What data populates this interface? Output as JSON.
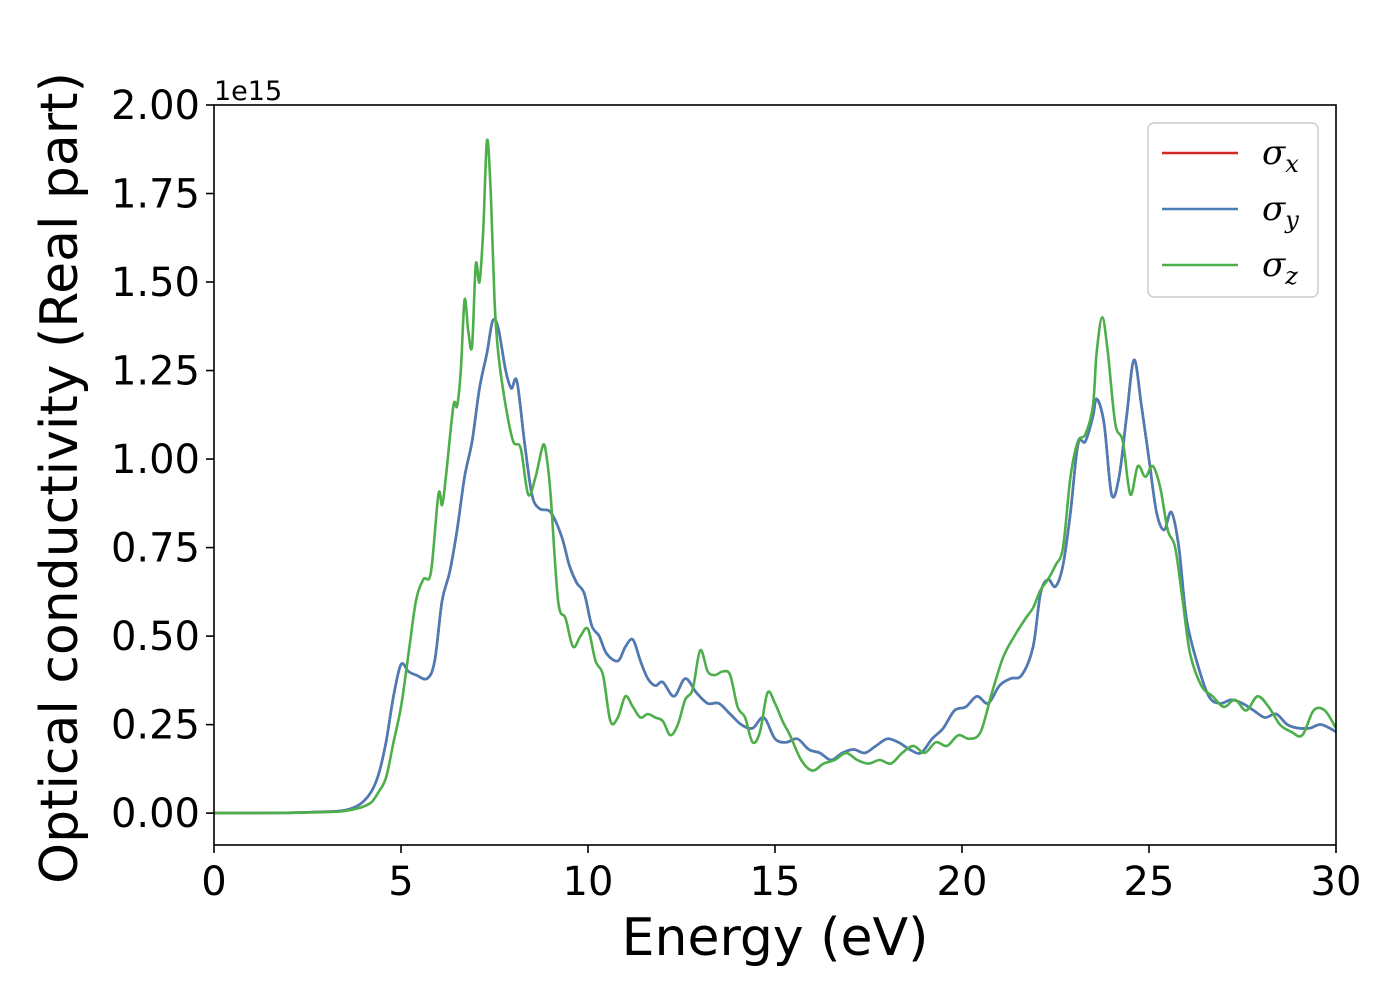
{
  "chart_data": {
    "type": "line",
    "xlabel": "Energy (eV)",
    "ylabel": "Optical conductivity (Real part)",
    "y_offset_label": "1e15",
    "xlim": [
      0,
      30
    ],
    "ylim": [
      -0.09,
      2.0
    ],
    "x_ticks": [
      0,
      5,
      10,
      15,
      20,
      25,
      30
    ],
    "y_ticks": [
      0.0,
      0.25,
      0.5,
      0.75,
      1.0,
      1.25,
      1.5,
      1.75,
      2.0
    ],
    "x_tick_labels": [
      "0",
      "5",
      "10",
      "15",
      "20",
      "25",
      "30"
    ],
    "y_tick_labels": [
      "0.00",
      "0.25",
      "0.50",
      "0.75",
      "1.00",
      "1.25",
      "1.50",
      "1.75",
      "2.00"
    ],
    "grid": false,
    "legend_position": "top-right",
    "series": [
      {
        "name": "σx",
        "symbol": "σ",
        "subscript": "x",
        "color": "#d62728",
        "x": [
          0,
          2,
          3,
          3.5,
          3.9,
          4.2,
          4.4,
          4.6,
          4.8,
          5.0,
          5.2,
          5.4,
          5.7,
          5.9,
          6.1,
          6.3,
          6.5,
          6.7,
          6.9,
          7.1,
          7.3,
          7.45,
          7.6,
          7.8,
          7.95,
          8.1,
          8.3,
          8.5,
          8.7,
          9.0,
          9.3,
          9.5,
          9.7,
          9.9,
          10.1,
          10.3,
          10.5,
          10.8,
          11.0,
          11.2,
          11.4,
          11.6,
          11.8,
          12.0,
          12.3,
          12.6,
          12.9,
          13.2,
          13.5,
          13.8,
          14.1,
          14.4,
          14.7,
          15.0,
          15.3,
          15.6,
          15.9,
          16.2,
          16.5,
          16.8,
          17.1,
          17.4,
          17.7,
          18.0,
          18.3,
          18.6,
          18.9,
          19.2,
          19.5,
          19.8,
          20.1,
          20.4,
          20.7,
          21.0,
          21.3,
          21.6,
          21.9,
          22.1,
          22.3,
          22.5,
          22.7,
          22.9,
          23.1,
          23.3,
          23.5,
          23.6,
          23.8,
          24.0,
          24.2,
          24.4,
          24.6,
          24.8,
          25.0,
          25.2,
          25.4,
          25.6,
          25.8,
          26.0,
          26.3,
          26.6,
          26.9,
          27.2,
          27.5,
          27.8,
          28.1,
          28.4,
          28.7,
          29.0,
          29.3,
          29.6,
          30.0
        ],
        "y": [
          0.0,
          0.001,
          0.004,
          0.008,
          0.025,
          0.06,
          0.11,
          0.2,
          0.33,
          0.42,
          0.4,
          0.39,
          0.38,
          0.43,
          0.6,
          0.68,
          0.8,
          0.95,
          1.05,
          1.2,
          1.3,
          1.39,
          1.37,
          1.25,
          1.2,
          1.22,
          1.05,
          0.9,
          0.86,
          0.85,
          0.78,
          0.7,
          0.65,
          0.62,
          0.53,
          0.5,
          0.45,
          0.43,
          0.47,
          0.49,
          0.43,
          0.38,
          0.36,
          0.37,
          0.33,
          0.38,
          0.34,
          0.31,
          0.31,
          0.28,
          0.25,
          0.24,
          0.27,
          0.21,
          0.2,
          0.21,
          0.18,
          0.17,
          0.15,
          0.17,
          0.18,
          0.17,
          0.19,
          0.21,
          0.2,
          0.18,
          0.17,
          0.21,
          0.24,
          0.29,
          0.3,
          0.33,
          0.31,
          0.36,
          0.38,
          0.39,
          0.47,
          0.62,
          0.66,
          0.64,
          0.7,
          0.85,
          1.04,
          1.05,
          1.12,
          1.17,
          1.1,
          0.9,
          0.95,
          1.12,
          1.28,
          1.15,
          1.0,
          0.85,
          0.8,
          0.85,
          0.75,
          0.55,
          0.42,
          0.33,
          0.31,
          0.32,
          0.31,
          0.29,
          0.27,
          0.28,
          0.25,
          0.24,
          0.24,
          0.25,
          0.23
        ]
      },
      {
        "name": "σy",
        "symbol": "σ",
        "subscript": "y",
        "color": "#4a7db8",
        "x": [
          0,
          2,
          3,
          3.5,
          3.9,
          4.2,
          4.4,
          4.6,
          4.8,
          5.0,
          5.2,
          5.4,
          5.7,
          5.9,
          6.1,
          6.3,
          6.5,
          6.7,
          6.9,
          7.1,
          7.3,
          7.45,
          7.6,
          7.8,
          7.95,
          8.1,
          8.3,
          8.5,
          8.7,
          9.0,
          9.3,
          9.5,
          9.7,
          9.9,
          10.1,
          10.3,
          10.5,
          10.8,
          11.0,
          11.2,
          11.4,
          11.6,
          11.8,
          12.0,
          12.3,
          12.6,
          12.9,
          13.2,
          13.5,
          13.8,
          14.1,
          14.4,
          14.7,
          15.0,
          15.3,
          15.6,
          15.9,
          16.2,
          16.5,
          16.8,
          17.1,
          17.4,
          17.7,
          18.0,
          18.3,
          18.6,
          18.9,
          19.2,
          19.5,
          19.8,
          20.1,
          20.4,
          20.7,
          21.0,
          21.3,
          21.6,
          21.9,
          22.1,
          22.3,
          22.5,
          22.7,
          22.9,
          23.1,
          23.3,
          23.5,
          23.6,
          23.8,
          24.0,
          24.2,
          24.4,
          24.6,
          24.8,
          25.0,
          25.2,
          25.4,
          25.6,
          25.8,
          26.0,
          26.3,
          26.6,
          26.9,
          27.2,
          27.5,
          27.8,
          28.1,
          28.4,
          28.7,
          29.0,
          29.3,
          29.6,
          30.0
        ],
        "y": [
          0.0,
          0.001,
          0.004,
          0.008,
          0.025,
          0.06,
          0.11,
          0.2,
          0.33,
          0.42,
          0.4,
          0.39,
          0.38,
          0.43,
          0.6,
          0.68,
          0.8,
          0.95,
          1.05,
          1.2,
          1.3,
          1.39,
          1.37,
          1.25,
          1.2,
          1.22,
          1.05,
          0.9,
          0.86,
          0.85,
          0.78,
          0.7,
          0.65,
          0.62,
          0.53,
          0.5,
          0.45,
          0.43,
          0.47,
          0.49,
          0.43,
          0.38,
          0.36,
          0.37,
          0.33,
          0.38,
          0.34,
          0.31,
          0.31,
          0.28,
          0.25,
          0.24,
          0.27,
          0.21,
          0.2,
          0.21,
          0.18,
          0.17,
          0.15,
          0.17,
          0.18,
          0.17,
          0.19,
          0.21,
          0.2,
          0.18,
          0.17,
          0.21,
          0.24,
          0.29,
          0.3,
          0.33,
          0.31,
          0.36,
          0.38,
          0.39,
          0.47,
          0.62,
          0.66,
          0.64,
          0.7,
          0.85,
          1.04,
          1.05,
          1.12,
          1.17,
          1.1,
          0.9,
          0.95,
          1.12,
          1.28,
          1.15,
          1.0,
          0.85,
          0.8,
          0.85,
          0.75,
          0.55,
          0.42,
          0.33,
          0.31,
          0.32,
          0.31,
          0.29,
          0.27,
          0.28,
          0.25,
          0.24,
          0.24,
          0.25,
          0.23
        ]
      },
      {
        "name": "σz",
        "symbol": "σ",
        "subscript": "z",
        "color": "#4daf4a",
        "x": [
          0,
          2,
          3,
          3.5,
          3.9,
          4.2,
          4.4,
          4.6,
          4.8,
          5.0,
          5.2,
          5.4,
          5.6,
          5.8,
          6.0,
          6.1,
          6.2,
          6.4,
          6.5,
          6.6,
          6.7,
          6.8,
          6.9,
          7.0,
          7.1,
          7.2,
          7.3,
          7.4,
          7.5,
          7.6,
          7.8,
          8.0,
          8.2,
          8.4,
          8.6,
          8.8,
          8.9,
          9.0,
          9.2,
          9.4,
          9.6,
          9.8,
          10.0,
          10.2,
          10.4,
          10.6,
          10.8,
          11.0,
          11.2,
          11.4,
          11.6,
          11.8,
          12.0,
          12.2,
          12.4,
          12.6,
          12.8,
          13.0,
          13.2,
          13.4,
          13.6,
          13.8,
          14.0,
          14.2,
          14.4,
          14.6,
          14.8,
          15.0,
          15.2,
          15.4,
          15.7,
          16.0,
          16.3,
          16.6,
          16.9,
          17.2,
          17.5,
          17.8,
          18.1,
          18.4,
          18.7,
          19.0,
          19.3,
          19.6,
          19.9,
          20.2,
          20.5,
          20.8,
          21.1,
          21.4,
          21.7,
          21.9,
          22.1,
          22.3,
          22.5,
          22.7,
          22.9,
          23.1,
          23.3,
          23.5,
          23.6,
          23.75,
          23.9,
          24.1,
          24.3,
          24.5,
          24.7,
          24.9,
          25.1,
          25.3,
          25.5,
          25.7,
          25.9,
          26.1,
          26.4,
          26.7,
          27.0,
          27.3,
          27.6,
          27.9,
          28.2,
          28.5,
          28.8,
          29.1,
          29.4,
          29.7,
          30.0
        ],
        "y": [
          0.0,
          0.001,
          0.003,
          0.006,
          0.015,
          0.03,
          0.06,
          0.1,
          0.2,
          0.3,
          0.45,
          0.6,
          0.66,
          0.68,
          0.9,
          0.87,
          0.95,
          1.15,
          1.15,
          1.25,
          1.45,
          1.36,
          1.32,
          1.55,
          1.5,
          1.65,
          1.9,
          1.75,
          1.45,
          1.3,
          1.15,
          1.05,
          1.03,
          0.9,
          0.95,
          1.04,
          1.0,
          0.9,
          0.6,
          0.55,
          0.47,
          0.5,
          0.52,
          0.43,
          0.39,
          0.26,
          0.27,
          0.33,
          0.3,
          0.27,
          0.28,
          0.27,
          0.26,
          0.22,
          0.25,
          0.32,
          0.35,
          0.46,
          0.4,
          0.39,
          0.4,
          0.39,
          0.3,
          0.27,
          0.2,
          0.23,
          0.34,
          0.31,
          0.26,
          0.22,
          0.15,
          0.12,
          0.14,
          0.15,
          0.17,
          0.15,
          0.14,
          0.15,
          0.14,
          0.17,
          0.19,
          0.17,
          0.2,
          0.19,
          0.22,
          0.21,
          0.23,
          0.34,
          0.44,
          0.5,
          0.55,
          0.58,
          0.63,
          0.66,
          0.7,
          0.75,
          0.95,
          1.05,
          1.07,
          1.15,
          1.3,
          1.4,
          1.3,
          1.1,
          1.05,
          0.9,
          0.98,
          0.95,
          0.98,
          0.92,
          0.8,
          0.75,
          0.6,
          0.45,
          0.36,
          0.33,
          0.3,
          0.32,
          0.29,
          0.33,
          0.3,
          0.25,
          0.23,
          0.22,
          0.29,
          0.29,
          0.24
        ]
      }
    ]
  }
}
